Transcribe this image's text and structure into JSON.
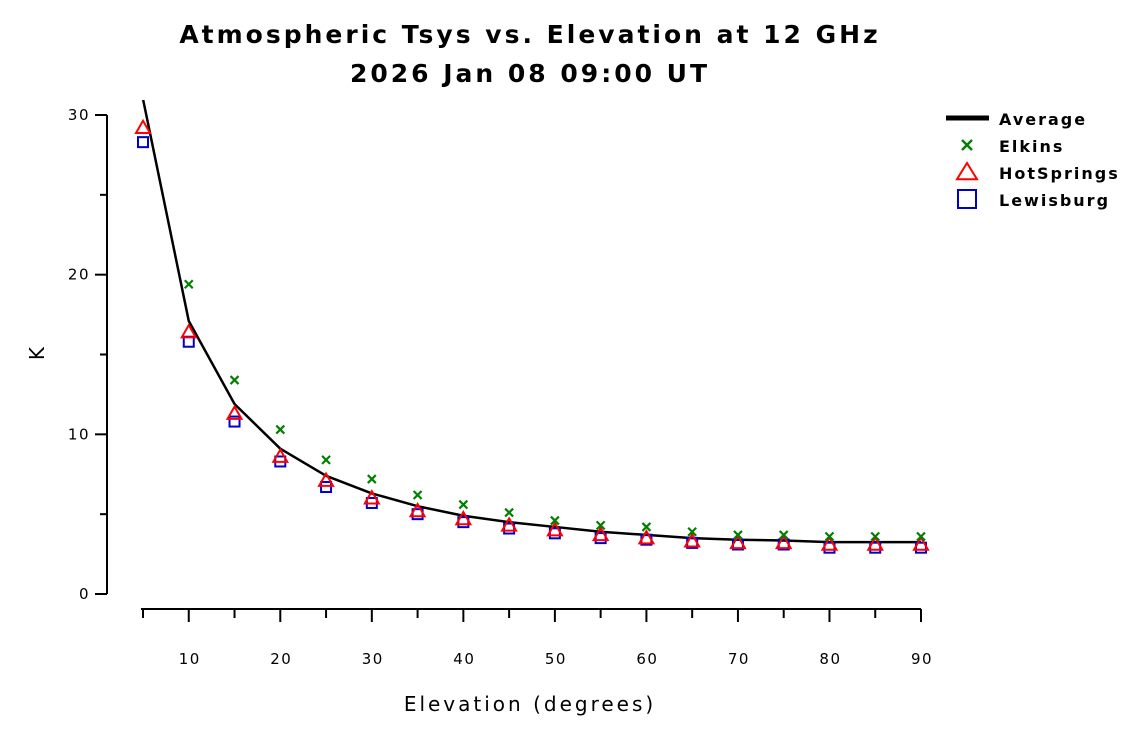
{
  "chart_data": {
    "type": "scatter",
    "title": "Atmospheric Tsys vs. Elevation at 12 GHz",
    "subtitle": "2026 Jan 08 09:00 UT",
    "xlabel": "Elevation (degrees)",
    "ylabel": "K",
    "xlim": [
      5,
      90
    ],
    "ylim": [
      0,
      30
    ],
    "x_ticks": [
      10,
      20,
      30,
      40,
      50,
      60,
      70,
      80,
      90
    ],
    "y_ticks": [
      0,
      10,
      20,
      30
    ],
    "grid": false,
    "legend_position": "top-right",
    "series": [
      {
        "name": "Average",
        "kind": "line",
        "color": "#000000",
        "x": [
          5,
          10,
          15,
          20,
          25,
          30,
          35,
          40,
          45,
          50,
          55,
          60,
          65,
          70,
          75,
          80,
          85,
          90
        ],
        "y": [
          31,
          17.1,
          11.9,
          9.1,
          7.4,
          6.3,
          5.5,
          4.9,
          4.5,
          4.2,
          3.9,
          3.7,
          3.5,
          3.4,
          3.35,
          3.25,
          3.25,
          3.25
        ]
      },
      {
        "name": "Elkins",
        "kind": "marker",
        "marker": "x",
        "color": "#008000",
        "x": [
          10,
          15,
          20,
          25,
          30,
          35,
          40,
          45,
          50,
          55,
          60,
          65,
          70,
          75,
          80,
          85,
          90
        ],
        "y": [
          19.4,
          13.4,
          10.3,
          8.4,
          7.2,
          6.2,
          5.6,
          5.1,
          4.6,
          4.3,
          4.2,
          3.9,
          3.7,
          3.7,
          3.6,
          3.6,
          3.6
        ]
      },
      {
        "name": "HotSprings",
        "kind": "marker",
        "marker": "triangle",
        "color": "#ff0000",
        "x": [
          5,
          10,
          15,
          20,
          25,
          30,
          35,
          40,
          45,
          50,
          55,
          60,
          65,
          70,
          75,
          80,
          85,
          90
        ],
        "y": [
          29.2,
          16.4,
          11.3,
          8.6,
          7.1,
          6.0,
          5.2,
          4.7,
          4.3,
          4.0,
          3.7,
          3.5,
          3.3,
          3.2,
          3.2,
          3.1,
          3.1,
          3.1
        ]
      },
      {
        "name": "Lewisburg",
        "kind": "marker",
        "marker": "square",
        "color": "#0000cc",
        "x": [
          5,
          10,
          15,
          20,
          25,
          30,
          35,
          40,
          45,
          50,
          55,
          60,
          65,
          70,
          75,
          80,
          85,
          90
        ],
        "y": [
          28.3,
          15.8,
          10.8,
          8.3,
          6.7,
          5.7,
          5.0,
          4.5,
          4.1,
          3.8,
          3.5,
          3.4,
          3.2,
          3.1,
          3.1,
          2.9,
          2.9,
          2.9
        ]
      }
    ]
  }
}
